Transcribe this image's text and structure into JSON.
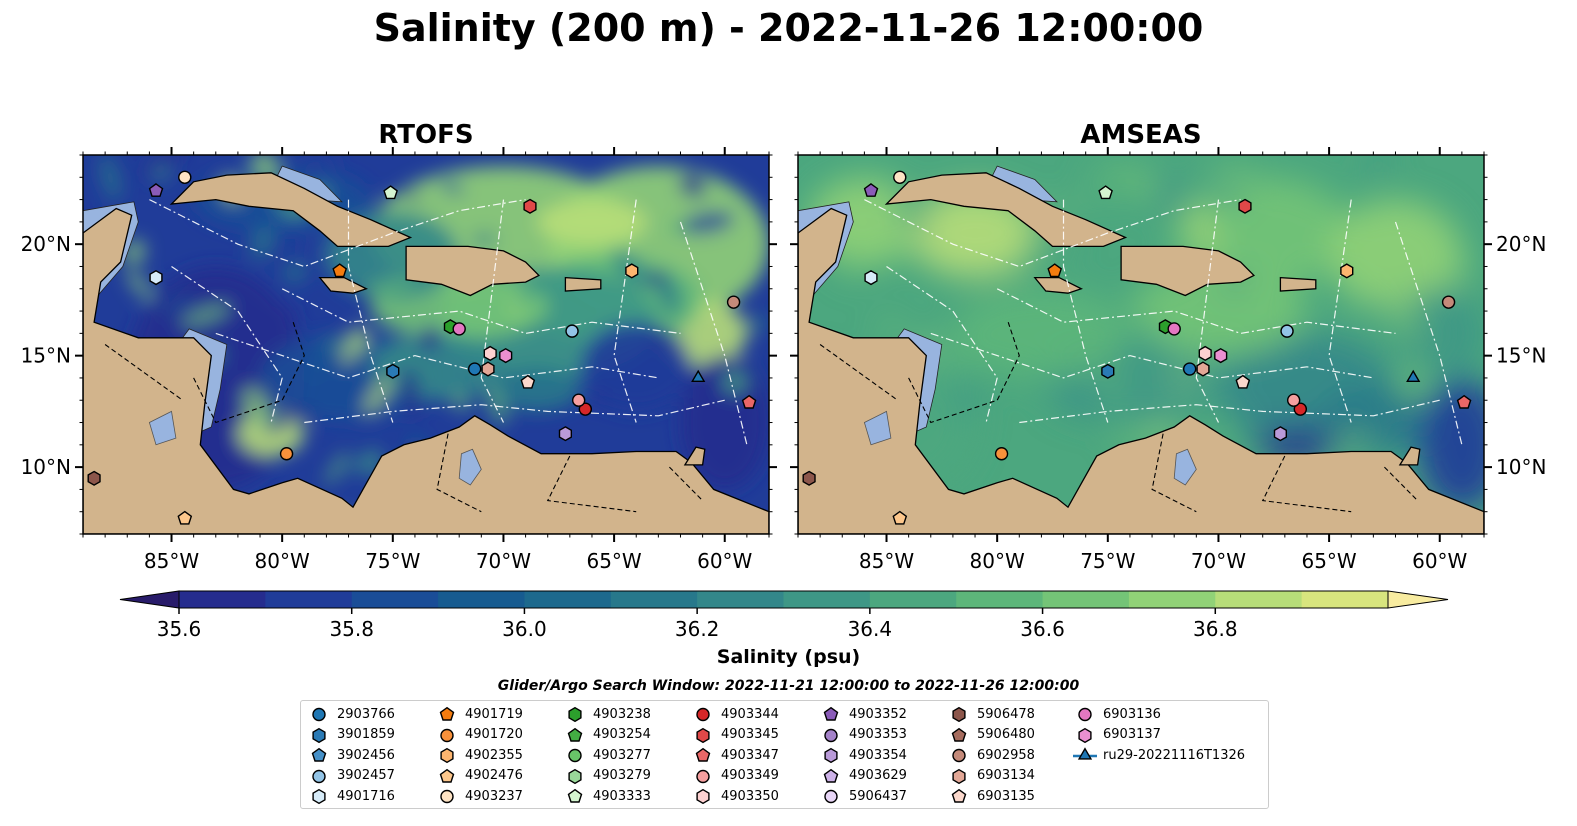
{
  "title": "Salinity (200 m) - 2022-11-26 12:00:00",
  "chart_data": [
    {
      "type": "heatmap",
      "title": "RTOFS",
      "x_ticks": [
        "85°W",
        "80°W",
        "75°W",
        "70°W",
        "65°W",
        "60°W"
      ],
      "y_ticks": [
        "20°N",
        "15°N",
        "10°N"
      ],
      "xlim": [
        -89,
        -58
      ],
      "ylim": [
        7,
        24
      ],
      "field": "salinity",
      "background_level": 35.7
    },
    {
      "type": "heatmap",
      "title": "AMSEAS",
      "x_ticks": [
        "85°W",
        "80°W",
        "75°W",
        "70°W",
        "65°W",
        "60°W"
      ],
      "y_ticks": [
        "20°N",
        "15°N",
        "10°N"
      ],
      "xlim": [
        -89,
        -58
      ],
      "ylim": [
        7,
        24
      ],
      "field": "salinity",
      "background_level": 36.5
    }
  ],
  "colorbar": {
    "label": "Salinity (psu)",
    "ticks": [
      "35.6",
      "35.8",
      "36.0",
      "36.2",
      "36.4",
      "36.6",
      "36.8"
    ],
    "min": 35.55,
    "max": 36.9,
    "step": 0.1,
    "colors": [
      "#281b6a",
      "#252c8e",
      "#203c99",
      "#1a4d97",
      "#175b90",
      "#1d698d",
      "#27788b",
      "#33878a",
      "#3e9786",
      "#4ca77f",
      "#5db67a",
      "#74c477",
      "#91d277",
      "#b7dd79",
      "#d8e57e",
      "#f8eca0"
    ]
  },
  "legend": {
    "title": "Glider/Argo Search Window: 2022-11-21 12:00:00 to 2022-11-26 12:00:00",
    "items": [
      {
        "label": "2903766",
        "marker": "circle",
        "color": "#1f77b4"
      },
      {
        "label": "3901859",
        "marker": "hexagon",
        "color": "#2a7ab5"
      },
      {
        "label": "3902456",
        "marker": "pentagon",
        "color": "#4590c8"
      },
      {
        "label": "3902457",
        "marker": "circle",
        "color": "#93c4e6"
      },
      {
        "label": "4901716",
        "marker": "hexagon",
        "color": "#d6ebf8"
      },
      {
        "label": "4901719",
        "marker": "pentagon",
        "color": "#f47c0f"
      },
      {
        "label": "4901720",
        "marker": "circle",
        "color": "#f8913b"
      },
      {
        "label": "4902355",
        "marker": "hexagon",
        "color": "#fdb56f"
      },
      {
        "label": "4902476",
        "marker": "pentagon",
        "color": "#fdc78c"
      },
      {
        "label": "4903237",
        "marker": "circle",
        "color": "#fee3c4"
      },
      {
        "label": "4903238",
        "marker": "hexagon",
        "color": "#2ca02c"
      },
      {
        "label": "4903254",
        "marker": "pentagon",
        "color": "#43ad43"
      },
      {
        "label": "4903277",
        "marker": "circle",
        "color": "#68c368"
      },
      {
        "label": "4903279",
        "marker": "hexagon",
        "color": "#9ad89a"
      },
      {
        "label": "4903333",
        "marker": "pentagon",
        "color": "#d5f5d0"
      },
      {
        "label": "4903344",
        "marker": "circle",
        "color": "#d62728"
      },
      {
        "label": "4903345",
        "marker": "hexagon",
        "color": "#e04848"
      },
      {
        "label": "4903347",
        "marker": "pentagon",
        "color": "#ea6767"
      },
      {
        "label": "4903349",
        "marker": "circle",
        "color": "#f59f9f"
      },
      {
        "label": "4903350",
        "marker": "hexagon",
        "color": "#fdd1d1"
      },
      {
        "label": "4903352",
        "marker": "pentagon",
        "color": "#8a5bb8"
      },
      {
        "label": "4903353",
        "marker": "circle",
        "color": "#a482c9"
      },
      {
        "label": "4903354",
        "marker": "hexagon",
        "color": "#b99ad8"
      },
      {
        "label": "4903629",
        "marker": "pentagon",
        "color": "#cdb2e8"
      },
      {
        "label": "5906437",
        "marker": "circle",
        "color": "#e8d6f7"
      },
      {
        "label": "5906478",
        "marker": "hexagon",
        "color": "#8c564b"
      },
      {
        "label": "5906480",
        "marker": "pentagon",
        "color": "#a66c5e"
      },
      {
        "label": "6902958",
        "marker": "circle",
        "color": "#c48a7a"
      },
      {
        "label": "6903134",
        "marker": "hexagon",
        "color": "#e2a796"
      },
      {
        "label": "6903135",
        "marker": "pentagon",
        "color": "#fbd8cc"
      },
      {
        "label": "6903136",
        "marker": "circle",
        "color": "#e377c2"
      },
      {
        "label": "6903137",
        "marker": "hexagon",
        "color": "#ea8fd0"
      },
      {
        "label": "ru29-20221116T1326",
        "marker": "triangle-line",
        "color": "#1f77b4"
      }
    ]
  },
  "floats": [
    {
      "id": "2903766",
      "lon": -71.3,
      "lat": 14.4
    },
    {
      "id": "3901859",
      "lon": -75.0,
      "lat": 14.3
    },
    {
      "id": "3902457",
      "lon": -66.9,
      "lat": 16.1
    },
    {
      "id": "4901716",
      "lon": -85.7,
      "lat": 18.5
    },
    {
      "id": "4901719",
      "lon": -77.4,
      "lat": 18.8
    },
    {
      "id": "4901720",
      "lon": -79.8,
      "lat": 10.6
    },
    {
      "id": "4902355",
      "lon": -64.2,
      "lat": 18.8
    },
    {
      "id": "4902476",
      "lon": -84.4,
      "lat": 7.7
    },
    {
      "id": "4903237",
      "lon": -84.4,
      "lat": 23.0
    },
    {
      "id": "4903238",
      "lon": -72.4,
      "lat": 16.3
    },
    {
      "id": "4903333",
      "lon": -75.1,
      "lat": 22.3
    },
    {
      "id": "4903344",
      "lon": -66.3,
      "lat": 12.6
    },
    {
      "id": "4903345",
      "lon": -68.8,
      "lat": 21.7
    },
    {
      "id": "4903347",
      "lon": -58.9,
      "lat": 12.9
    },
    {
      "id": "4903349",
      "lon": -66.6,
      "lat": 13.0
    },
    {
      "id": "4903350",
      "lon": -70.6,
      "lat": 15.1
    },
    {
      "id": "4903352",
      "lon": -85.7,
      "lat": 22.4
    },
    {
      "id": "4903354",
      "lon": -67.2,
      "lat": 11.5
    },
    {
      "id": "5906478",
      "lon": -88.5,
      "lat": 9.5
    },
    {
      "id": "6902958",
      "lon": -59.6,
      "lat": 17.4
    },
    {
      "id": "6903134",
      "lon": -70.7,
      "lat": 14.4
    },
    {
      "id": "6903135",
      "lon": -68.9,
      "lat": 13.8
    },
    {
      "id": "6903136",
      "lon": -72.0,
      "lat": 16.2
    },
    {
      "id": "6903137",
      "lon": -69.9,
      "lat": 15.0
    },
    {
      "id": "ru29-20221116T1326",
      "lon": -61.2,
      "lat": 14.0
    }
  ]
}
